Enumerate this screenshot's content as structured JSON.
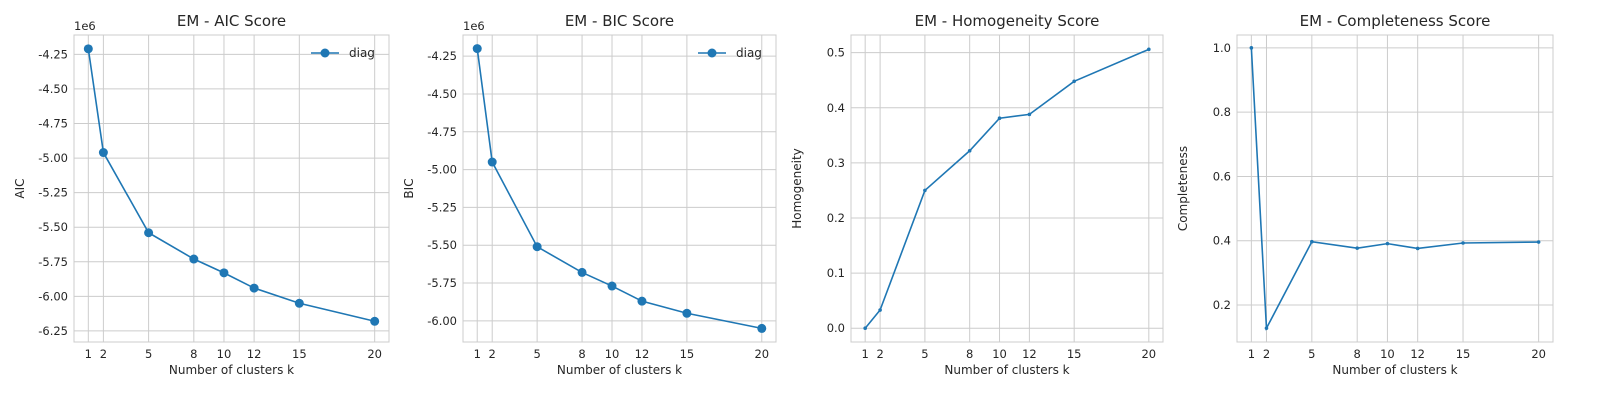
{
  "figure": {
    "theme": "seaborn-whitegrid",
    "line_color": "#1f77b4"
  },
  "chart_data": [
    {
      "type": "line",
      "title": "EM - AIC Score",
      "xlabel": "Number of clusters k",
      "ylabel": "AIC",
      "offset_label": "1e6",
      "x": [
        1,
        2,
        5,
        8,
        10,
        12,
        15,
        20
      ],
      "x_ticks": [
        "1",
        "2",
        "5",
        "8",
        "10",
        "12",
        "15",
        "20"
      ],
      "series": [
        {
          "name": "diag",
          "marker": "large-circle",
          "values": [
            -4.21,
            -4.96,
            -5.54,
            -5.73,
            -5.83,
            -5.94,
            -6.05,
            -6.18
          ]
        }
      ],
      "xlim": [
        0.05,
        20.95
      ],
      "ylim": [
        -6.33,
        -4.11
      ],
      "y_ticks": [
        "-4.25",
        "-4.50",
        "-4.75",
        "-5.00",
        "-5.25",
        "-5.50",
        "-5.75",
        "-6.00",
        "-6.25"
      ],
      "y_tick_values": [
        -4.25,
        -4.5,
        -4.75,
        -5.0,
        -5.25,
        -5.5,
        -5.75,
        -6.0,
        -6.25
      ],
      "legend": "top-right",
      "grid": true
    },
    {
      "type": "line",
      "title": "EM - BIC Score",
      "xlabel": "Number of clusters k",
      "ylabel": "BIC",
      "offset_label": "1e6",
      "x": [
        1,
        2,
        5,
        8,
        10,
        12,
        15,
        20
      ],
      "x_ticks": [
        "1",
        "2",
        "5",
        "8",
        "10",
        "12",
        "15",
        "20"
      ],
      "series": [
        {
          "name": "diag",
          "marker": "large-circle",
          "values": [
            -4.2,
            -4.95,
            -5.51,
            -5.68,
            -5.77,
            -5.87,
            -5.95,
            -6.05
          ]
        }
      ],
      "xlim": [
        0.05,
        20.95
      ],
      "ylim": [
        -6.14,
        -4.11
      ],
      "y_ticks": [
        "-4.25",
        "-4.50",
        "-4.75",
        "-5.00",
        "-5.25",
        "-5.50",
        "-5.75",
        "-6.00"
      ],
      "y_tick_values": [
        -4.25,
        -4.5,
        -4.75,
        -5.0,
        -5.25,
        -5.5,
        -5.75,
        -6.0
      ],
      "legend": "top-right",
      "grid": true
    },
    {
      "type": "line",
      "title": "EM - Homogeneity Score",
      "xlabel": "Number of clusters k",
      "ylabel": "Homogeneity",
      "x": [
        1,
        2,
        5,
        8,
        10,
        12,
        15,
        20
      ],
      "x_ticks": [
        "1",
        "2",
        "5",
        "8",
        "10",
        "12",
        "15",
        "20"
      ],
      "series": [
        {
          "marker": "small-dot",
          "values": [
            0.0,
            0.033,
            0.25,
            0.322,
            0.381,
            0.388,
            0.448,
            0.506
          ]
        }
      ],
      "xlim": [
        0.05,
        20.95
      ],
      "ylim": [
        -0.025,
        0.532
      ],
      "y_ticks": [
        "0.0",
        "0.1",
        "0.2",
        "0.3",
        "0.4",
        "0.5"
      ],
      "y_tick_values": [
        0.0,
        0.1,
        0.2,
        0.3,
        0.4,
        0.5
      ],
      "grid": true
    },
    {
      "type": "line",
      "title": "EM - Completeness Score",
      "xlabel": "Number of clusters k",
      "ylabel": "Completeness",
      "x": [
        1,
        2,
        5,
        8,
        10,
        12,
        15,
        20
      ],
      "x_ticks": [
        "1",
        "2",
        "5",
        "8",
        "10",
        "12",
        "15",
        "20"
      ],
      "series": [
        {
          "marker": "small-dot",
          "values": [
            1.0,
            0.128,
            0.397,
            0.377,
            0.391,
            0.376,
            0.393,
            0.396
          ]
        }
      ],
      "xlim": [
        0.05,
        20.95
      ],
      "ylim": [
        0.085,
        1.04
      ],
      "y_ticks": [
        "0.2",
        "0.4",
        "0.6",
        "0.8",
        "1.0"
      ],
      "y_tick_values": [
        0.2,
        0.4,
        0.6,
        0.8,
        1.0
      ],
      "grid": true
    }
  ]
}
